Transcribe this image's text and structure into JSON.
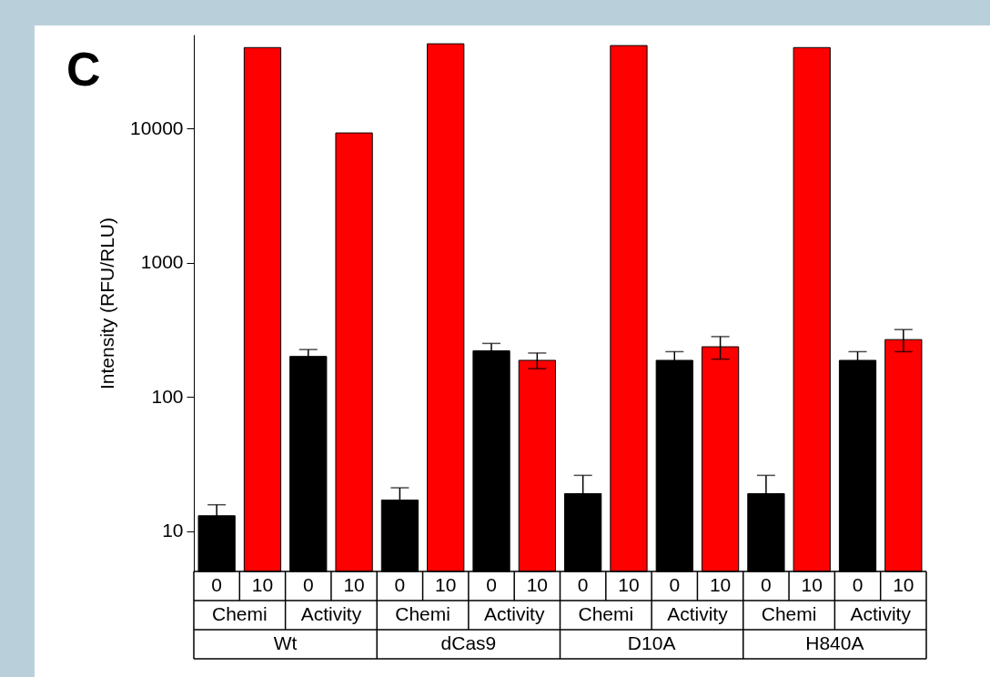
{
  "chart_data": {
    "type": "bar",
    "title": "C",
    "ylabel": "Intensity (RFU/RLU)",
    "categories": [
      "0",
      "10",
      "0",
      "10",
      "0",
      "10",
      "0",
      "10",
      "0",
      "10",
      "0",
      "10",
      "0",
      "10",
      "0",
      "10"
    ],
    "values": [
      13,
      40000,
      200,
      9250,
      17,
      42700,
      220,
      187,
      19,
      41400,
      187,
      236,
      19,
      40000,
      187,
      267
    ],
    "errors": [
      2.7,
      null,
      25,
      null,
      4,
      null,
      30,
      25,
      7,
      null,
      30,
      45,
      7,
      null,
      30,
      50
    ],
    "colors": [
      "#000000",
      "#ff0000",
      "#000000",
      "#ff0000",
      "#000000",
      "#ff0000",
      "#000000",
      "#ff0000",
      "#000000",
      "#ff0000",
      "#000000",
      "#ff0000",
      "#000000",
      "#ff0000",
      "#000000",
      "#ff0000"
    ],
    "annotations": [
      "Chemi",
      "Activity",
      "Chemi",
      "Activity",
      "Chemi",
      "Activity",
      "Chemi",
      "Activity",
      "Wt",
      "dCas9",
      "D10A",
      "H840A"
    ],
    "log": true,
    "ylim": [
      5,
      50000
    ],
    "yticks": [
      10,
      100,
      1000,
      10000
    ],
    "grid": false
  }
}
